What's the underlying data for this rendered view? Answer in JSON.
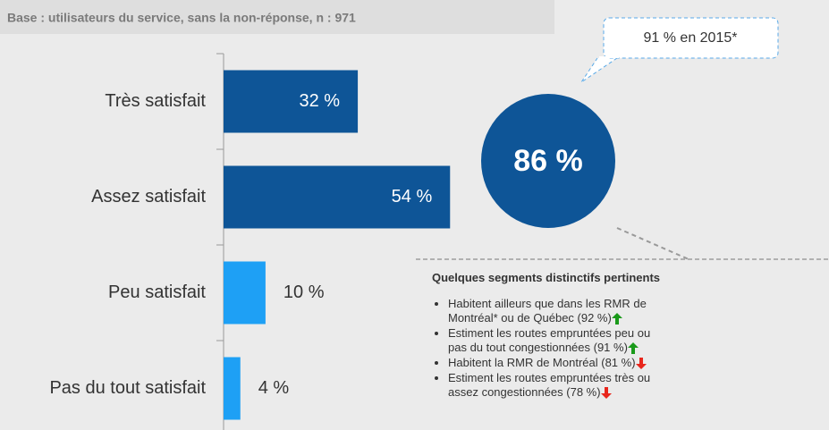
{
  "chart_data": {
    "type": "barh",
    "subtitle": "Base : utilisateurs du service, sans la non-réponse, n : 971",
    "categories": [
      "Très satisfait",
      "Assez satisfait",
      "Peu satisfait",
      "Pas du tout satisfait"
    ],
    "values": [
      32,
      54,
      10,
      4
    ],
    "value_labels": [
      "32 %",
      "54 %",
      "10 %",
      "4 %"
    ],
    "colors": [
      "#0e5597",
      "#0e5597",
      "#1ea0f5",
      "#1ea0f5"
    ],
    "total_label": "86 %",
    "callout": "91 % en 2015*",
    "segments": {
      "title": "Quelques segments distinctifs pertinents",
      "items": [
        {
          "text": "Habitent ailleurs que dans les RMR de Montréal* ou de Québec (92 %)",
          "direction": "up"
        },
        {
          "text": "Estiment les routes empruntées peu ou pas du tout congestionnées (91 %)",
          "direction": "up"
        },
        {
          "text": "Habitent la RMR de Montréal (81 %)",
          "direction": "down"
        },
        {
          "text": "Estiment les routes empruntées très ou assez congestionnées (78 %)",
          "direction": "down"
        }
      ]
    }
  }
}
